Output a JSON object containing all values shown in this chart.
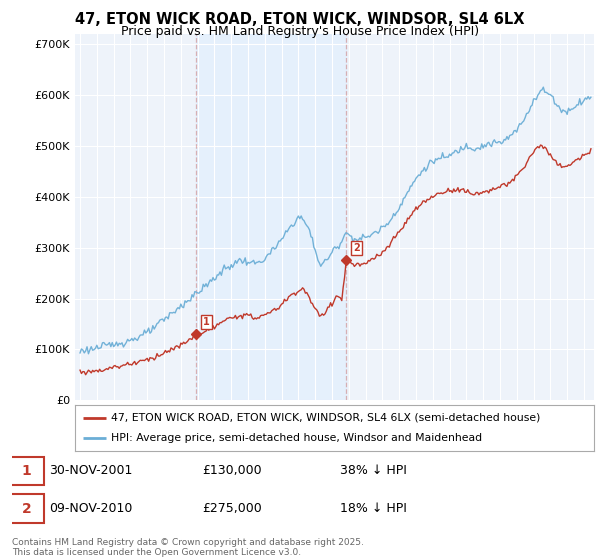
{
  "title": "47, ETON WICK ROAD, ETON WICK, WINDSOR, SL4 6LX",
  "subtitle": "Price paid vs. HM Land Registry's House Price Index (HPI)",
  "ylim": [
    0,
    720000
  ],
  "yticks": [
    0,
    100000,
    200000,
    300000,
    400000,
    500000,
    600000,
    700000
  ],
  "ytick_labels": [
    "£0",
    "£100K",
    "£200K",
    "£300K",
    "£400K",
    "£500K",
    "£600K",
    "£700K"
  ],
  "hpi_color": "#6baed6",
  "price_color": "#c0392b",
  "vline_color": "#c0392b",
  "vline_alpha": 0.35,
  "shade_color": "#ddeeff",
  "shade_alpha": 0.5,
  "purchase1_year": 2001.92,
  "purchase1_price": 130000,
  "purchase2_year": 2010.86,
  "purchase2_price": 275000,
  "purchase1_date": "30-NOV-2001",
  "purchase1_amount": "£130,000",
  "purchase1_note": "38% ↓ HPI",
  "purchase2_date": "09-NOV-2010",
  "purchase2_amount": "£275,000",
  "purchase2_note": "18% ↓ HPI",
  "footer": "Contains HM Land Registry data © Crown copyright and database right 2025.\nThis data is licensed under the Open Government Licence v3.0.",
  "legend1": "47, ETON WICK ROAD, ETON WICK, WINDSOR, SL4 6LX (semi-detached house)",
  "legend2": "HPI: Average price, semi-detached house, Windsor and Maidenhead",
  "background_color": "#eef3fa",
  "title_fontsize": 10.5,
  "subtitle_fontsize": 9
}
